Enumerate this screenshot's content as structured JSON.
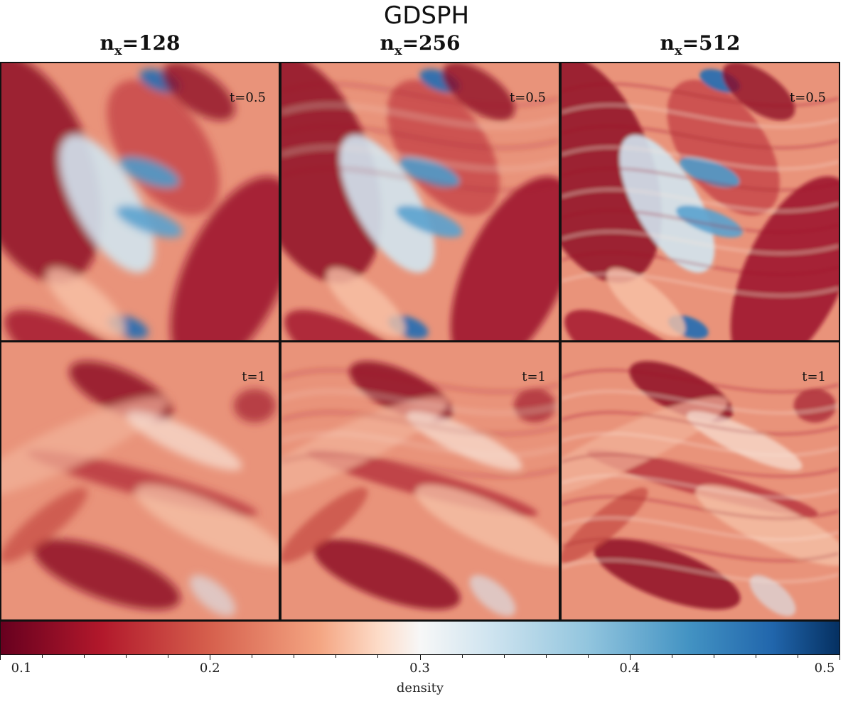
{
  "figure": {
    "title": "GDSPH",
    "columns": [
      {
        "label_base": "n",
        "label_sub": "x",
        "label_value": "=128"
      },
      {
        "label_base": "n",
        "label_sub": "x",
        "label_value": "=256"
      },
      {
        "label_base": "n",
        "label_sub": "x",
        "label_value": "=512"
      }
    ],
    "rows": [
      {
        "time_label": "t=0.5"
      },
      {
        "time_label": "t=1"
      }
    ],
    "colorbar": {
      "label": "density",
      "colormap": "RdBu",
      "range": [
        0.1,
        0.5
      ],
      "ticks": [
        "0.1",
        "0.2",
        "0.3",
        "0.4",
        "0.5"
      ]
    }
  }
}
